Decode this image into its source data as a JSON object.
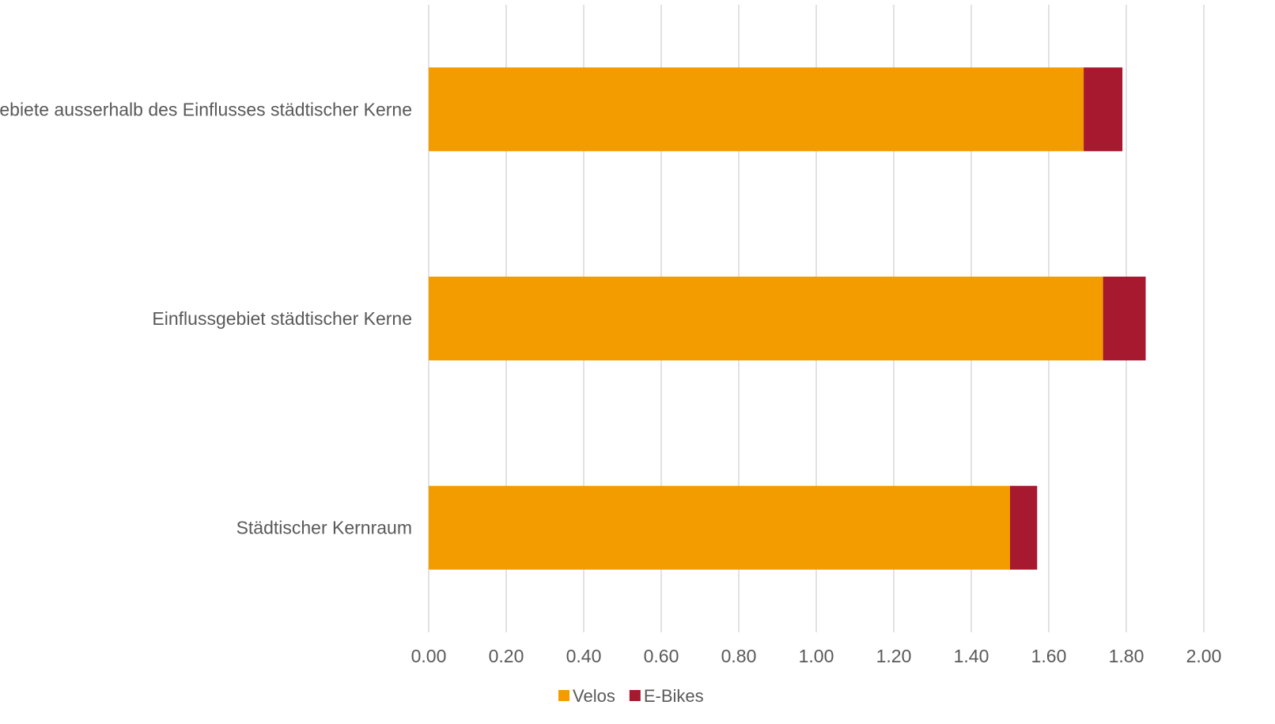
{
  "chart_data": {
    "type": "bar",
    "orientation": "horizontal",
    "stacked": true,
    "categories": [
      "Gebiete ausserhalb des Einflusses städtischer Kerne",
      "Einflussgebiet städtischer Kerne",
      "Städtischer Kernraum"
    ],
    "series": [
      {
        "name": "Velos",
        "color": "#f39c00",
        "values": [
          1.69,
          1.74,
          1.5
        ]
      },
      {
        "name": "E-Bikes",
        "color": "#a6192e",
        "values": [
          0.1,
          0.11,
          0.07
        ]
      }
    ],
    "xlim": [
      0,
      2.0
    ],
    "xticks": [
      "0.00",
      "0.20",
      "0.40",
      "0.60",
      "0.80",
      "1.00",
      "1.20",
      "1.40",
      "1.60",
      "1.80",
      "2.00"
    ],
    "title": "",
    "xlabel": "",
    "ylabel": "",
    "grid": "vertical",
    "legend": "bottom-center"
  }
}
